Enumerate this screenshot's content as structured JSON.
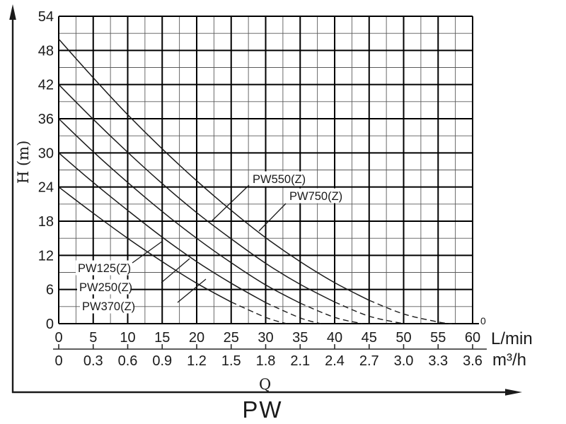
{
  "chart_data": {
    "type": "line",
    "title": "PW",
    "grid": true,
    "legend_position": "inline-labels",
    "y_axis": {
      "label": "H (m)",
      "range": [
        0,
        54
      ],
      "major_step": 6,
      "minor_step": 3,
      "ticks": [
        54,
        48,
        42,
        36,
        30,
        24,
        18,
        12,
        6,
        0
      ]
    },
    "x_axis_primary": {
      "label": "L/min",
      "range": [
        0,
        60
      ],
      "major_step": 5,
      "minor_step": 2.5,
      "ticks": [
        0,
        5,
        10,
        15,
        20,
        25,
        30,
        35,
        40,
        45,
        50,
        55,
        60
      ],
      "end_zero_marker": "0"
    },
    "x_axis_secondary": {
      "label": "m³/h",
      "range": [
        0,
        3.6
      ],
      "ticks": [
        "0",
        "0.3",
        "0.6",
        "0.9",
        "1.2",
        "1.5",
        "1.8",
        "2.1",
        "2.4",
        "2.7",
        "3.0",
        "3.3",
        "3.6"
      ]
    },
    "flow_symbol": "Q",
    "series": [
      {
        "name": "PW125(Z)",
        "dash_from_q": 25,
        "points": [
          [
            0,
            24
          ],
          [
            5,
            19.4
          ],
          [
            10,
            15.0
          ],
          [
            15,
            10.9
          ],
          [
            20,
            7.1
          ],
          [
            25,
            3.8
          ],
          [
            30,
            1.1
          ],
          [
            33,
            0
          ]
        ]
      },
      {
        "name": "PW250(Z)",
        "dash_from_q": 30,
        "points": [
          [
            0,
            30
          ],
          [
            5,
            24.8
          ],
          [
            10,
            19.9
          ],
          [
            15,
            15.2
          ],
          [
            20,
            10.9
          ],
          [
            25,
            7.1
          ],
          [
            30,
            3.7
          ],
          [
            35,
            1.0
          ],
          [
            38,
            0
          ]
        ]
      },
      {
        "name": "PW370(Z)",
        "dash_from_q": 35,
        "points": [
          [
            0,
            36
          ],
          [
            5,
            30.2
          ],
          [
            10,
            24.8
          ],
          [
            15,
            19.7
          ],
          [
            20,
            15.0
          ],
          [
            25,
            10.7
          ],
          [
            30,
            6.8
          ],
          [
            35,
            3.6
          ],
          [
            40,
            1.1
          ],
          [
            44,
            0
          ]
        ]
      },
      {
        "name": "PW550(Z)",
        "dash_from_q": 40,
        "points": [
          [
            0,
            42
          ],
          [
            5,
            35.9
          ],
          [
            10,
            30.1
          ],
          [
            15,
            24.6
          ],
          [
            20,
            19.5
          ],
          [
            25,
            14.9
          ],
          [
            30,
            10.6
          ],
          [
            35,
            6.9
          ],
          [
            40,
            3.8
          ],
          [
            45,
            1.3
          ],
          [
            50,
            0
          ]
        ]
      },
      {
        "name": "PW750(Z)",
        "dash_from_q": 45,
        "points": [
          [
            0,
            50
          ],
          [
            5,
            43.2
          ],
          [
            10,
            36.7
          ],
          [
            15,
            30.7
          ],
          [
            20,
            25.1
          ],
          [
            25,
            19.9
          ],
          [
            30,
            15.1
          ],
          [
            35,
            10.9
          ],
          [
            40,
            7.2
          ],
          [
            45,
            4.1
          ],
          [
            50,
            1.7
          ],
          [
            55,
            0.3
          ],
          [
            57,
            0
          ]
        ]
      }
    ],
    "colors": {
      "ink": "#1a1a1a",
      "grid_major": "#000000",
      "grid_minor": "#5a5a5a",
      "background": "#ffffff"
    }
  }
}
